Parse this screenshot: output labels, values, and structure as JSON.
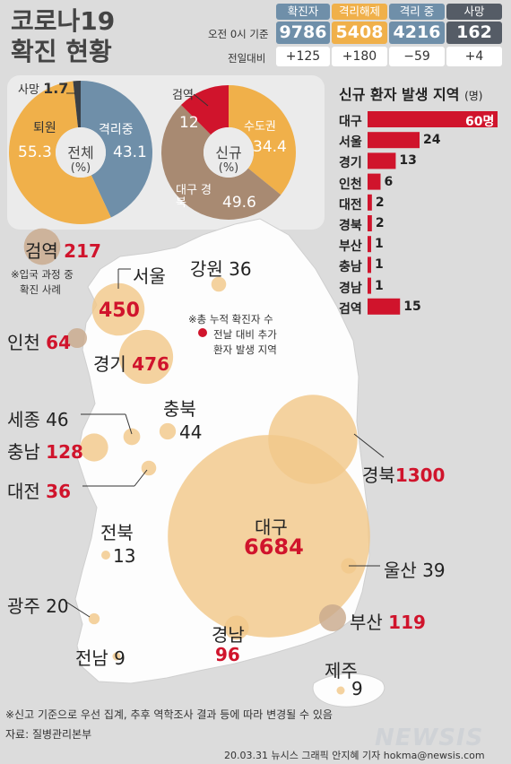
{
  "title_line1": "코로나19",
  "title_line2": "확진 현황",
  "summary": {
    "basis": "오전 0시 기준",
    "diff_label": "전일대비",
    "columns": [
      {
        "label": "확진자",
        "value": "9786",
        "diff": "+125",
        "color": "#6f8fa9"
      },
      {
        "label": "격리해제",
        "value": "5408",
        "diff": "+180",
        "color": "#f0b04a"
      },
      {
        "label": "격리 중",
        "value": "4216",
        "diff": "−59",
        "color": "#6f8fa9"
      },
      {
        "label": "사망",
        "value": "162",
        "diff": "+4",
        "color": "#555c66"
      }
    ]
  },
  "chart_data": [
    {
      "type": "pie",
      "title": "전체 (%)",
      "center_line1": "전체",
      "center_line2": "(%)",
      "slices": [
        {
          "label": "격리중",
          "value": 43.1,
          "color": "#6f8fa9"
        },
        {
          "label": "퇴원",
          "value": 55.3,
          "color": "#f0b04a"
        },
        {
          "label": "사망",
          "value": 1.7,
          "color": "#3a3f45"
        }
      ]
    },
    {
      "type": "pie",
      "title": "신규 (%)",
      "center_line1": "신규",
      "center_line2": "(%)",
      "slices": [
        {
          "label": "수도권",
          "value": 34.4,
          "color": "#f0b04a"
        },
        {
          "label": "대구 경북",
          "value": 49.6,
          "color": "#a88a72"
        },
        {
          "label": "검역",
          "value": 12.0,
          "color": "#d0142c"
        }
      ]
    },
    {
      "type": "bar",
      "title": "신규 환자 발생 지역",
      "unit": "(명)",
      "categories": [
        "대구",
        "서울",
        "경기",
        "인천",
        "대전",
        "경북",
        "부산",
        "충남",
        "경남",
        "검역"
      ],
      "values": [
        60,
        24,
        13,
        6,
        2,
        2,
        1,
        1,
        1,
        15
      ],
      "top_value_label": "60명",
      "xlim": [
        0,
        60
      ],
      "color": "#d0142c"
    },
    {
      "type": "scatter",
      "title": "누적 확진자 수 (지역별)",
      "points": [
        {
          "region": "검역",
          "total": "217",
          "new": true
        },
        {
          "region": "서울",
          "total": "450",
          "new": true
        },
        {
          "region": "강원",
          "total": "36",
          "new": false
        },
        {
          "region": "인천",
          "total": "64",
          "new": true
        },
        {
          "region": "경기",
          "total": "476",
          "new": true
        },
        {
          "region": "충북",
          "total": "44",
          "new": false
        },
        {
          "region": "세종",
          "total": "46",
          "new": false
        },
        {
          "region": "충남",
          "total": "128",
          "new": true
        },
        {
          "region": "대전",
          "total": "36",
          "new": true
        },
        {
          "region": "경북",
          "total": "1300",
          "new": true
        },
        {
          "region": "전북",
          "total": "13",
          "new": false
        },
        {
          "region": "대구",
          "total": "6684",
          "new": true
        },
        {
          "region": "울산",
          "total": "39",
          "new": false
        },
        {
          "region": "광주",
          "total": "20",
          "new": false
        },
        {
          "region": "부산",
          "total": "119",
          "new": true
        },
        {
          "region": "경남",
          "total": "96",
          "new": true
        },
        {
          "region": "전남",
          "total": "9",
          "new": false
        },
        {
          "region": "제주",
          "total": "9",
          "new": false
        }
      ]
    }
  ],
  "notes": {
    "quarantine_note_1": "※입국 과정 중",
    "quarantine_note_2": "확진 사례",
    "legend_1": "※총 누적 확진자 수",
    "legend_2": "전날 대비 추가",
    "legend_3": "환자 발생 지역",
    "footnote": "※신고 기준으로 우선 집계, 추후 역학조사 결과 등에 따라 변경될 수 있음",
    "source": "자료: 질병관리본부",
    "credit": "20.03.31  뉴시스 그래픽  안지혜  기자  hokma@newsis.com",
    "brand": "NEWSIS"
  }
}
